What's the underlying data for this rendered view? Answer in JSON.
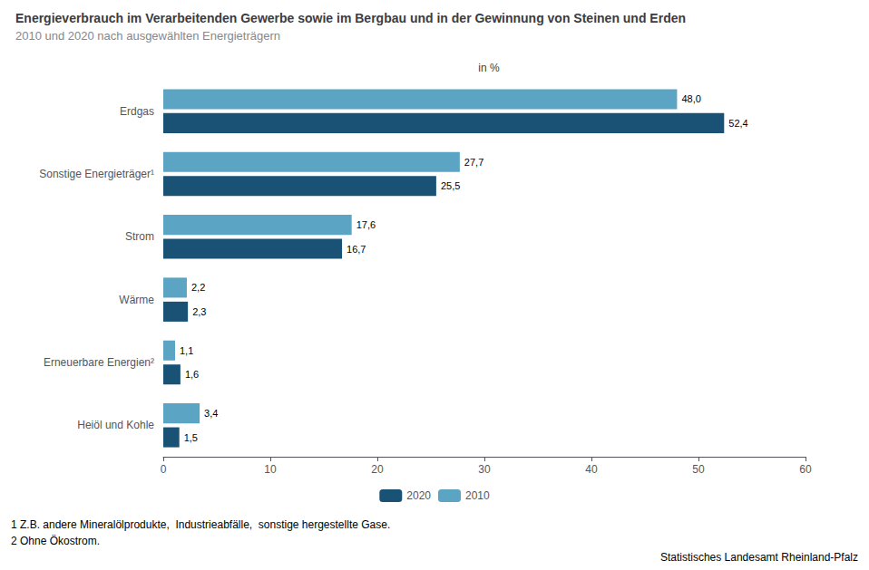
{
  "chart_data": {
    "type": "bar",
    "orientation": "horizontal",
    "title": "Energieverbrauch im Verarbeitenden Gewerbe sowie im Bergbau und in der Gewinnung von Steinen und Erden",
    "subtitle": "2010 und 2020 nach ausgewählten Energieträgern",
    "xlabel": "in %",
    "categories": [
      "Heiöl und Kohle",
      "Erneuerbare Energien²",
      "Wärme",
      "Strom",
      "Sonstige Energieträger¹",
      "Erdgas"
    ],
    "series": [
      {
        "name": "2020",
        "color": "#1A5276",
        "values": [
          1.5,
          1.6,
          2.3,
          16.7,
          25.5,
          52.4
        ],
        "value_labels": [
          "1,5",
          "1,6",
          "2,3",
          "16,7",
          "25,5",
          "52,4"
        ]
      },
      {
        "name": "2010",
        "color": "#5BA4C4",
        "values": [
          3.4,
          1.1,
          2.2,
          17.6,
          27.7,
          48.0
        ],
        "value_labels": [
          "3,4",
          "1,1",
          "2,2",
          "17,6",
          "27,7",
          "48,0"
        ]
      }
    ],
    "xlim": [
      0,
      60
    ],
    "xticks": [
      0,
      10,
      20,
      30,
      40,
      50,
      60
    ],
    "grid": false,
    "legend": "bottom",
    "data_labels": true,
    "annotations": [
      "1 Z.B. andere Mineralölprodukte,  Industrieabfälle,  sonstige hergestellte Gase.",
      "2 Ohne Ökostrom.",
      "Statistisches Landesamt Rheinland-Pfalz"
    ]
  }
}
